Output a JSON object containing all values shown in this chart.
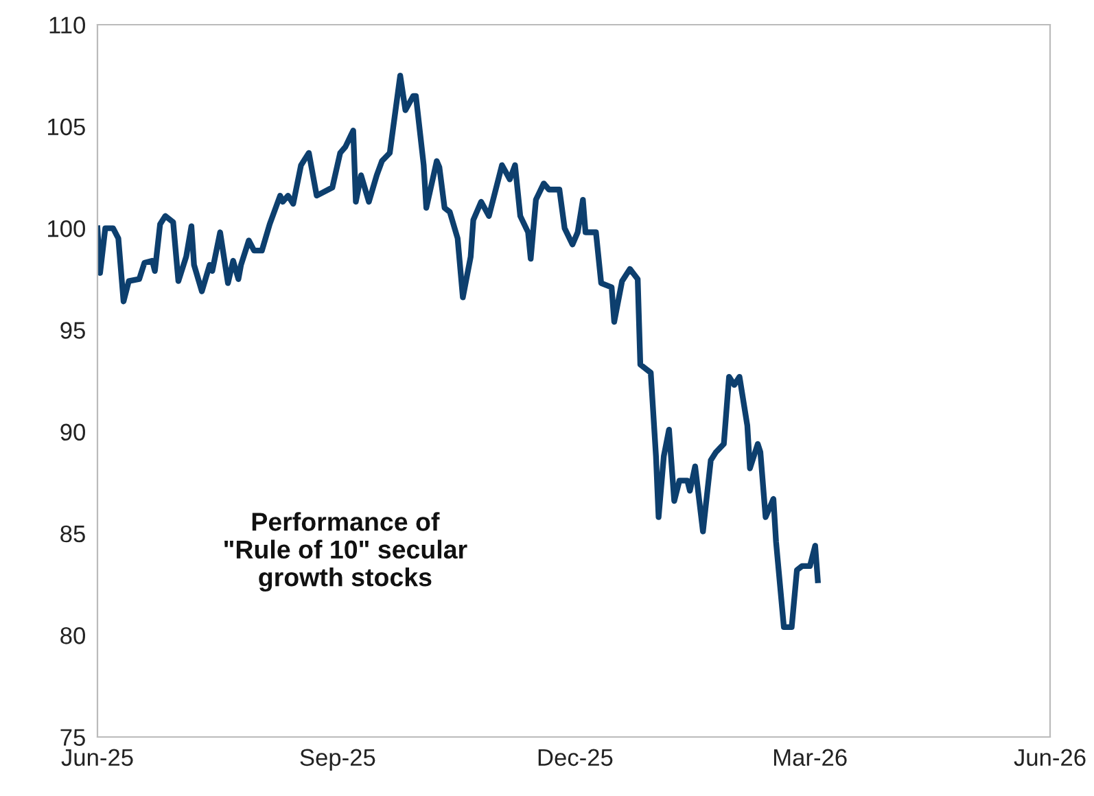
{
  "chart_data": {
    "type": "line",
    "annotations": [
      "Performance of\n\"Rule of 10\" secular\ngrowth stocks"
    ],
    "x": [
      "2025-06-01",
      "2025-06-02",
      "2025-06-04",
      "2025-06-07",
      "2025-06-09",
      "2025-06-11",
      "2025-06-13",
      "2025-06-17",
      "2025-06-19",
      "2025-06-22",
      "2025-06-23",
      "2025-06-25",
      "2025-06-27",
      "2025-06-30",
      "2025-07-02",
      "2025-07-05",
      "2025-07-07",
      "2025-07-08",
      "2025-07-11",
      "2025-07-14",
      "2025-07-15",
      "2025-07-18",
      "2025-07-21",
      "2025-07-23",
      "2025-07-25",
      "2025-07-26",
      "2025-07-29",
      "2025-07-31",
      "2025-08-03",
      "2025-08-06",
      "2025-08-10",
      "2025-08-11",
      "2025-08-13",
      "2025-08-15",
      "2025-08-18",
      "2025-08-21",
      "2025-08-24",
      "2025-08-30",
      "2025-09-02",
      "2025-09-04",
      "2025-09-07",
      "2025-09-08",
      "2025-09-10",
      "2025-09-13",
      "2025-09-16",
      "2025-09-18",
      "2025-09-21",
      "2025-09-25",
      "2025-09-27",
      "2025-09-30",
      "2025-10-01",
      "2025-10-04",
      "2025-10-05",
      "2025-10-09",
      "2025-10-10",
      "2025-10-12",
      "2025-10-14",
      "2025-10-17",
      "2025-10-19",
      "2025-10-22",
      "2025-10-23",
      "2025-10-26",
      "2025-10-29",
      "2025-11-03",
      "2025-11-06",
      "2025-11-08",
      "2025-11-10",
      "2025-11-13",
      "2025-11-14",
      "2025-11-16",
      "2025-11-19",
      "2025-11-21",
      "2025-11-25",
      "2025-11-27",
      "2025-11-30",
      "2025-12-02",
      "2025-12-04",
      "2025-12-05",
      "2025-12-09",
      "2025-12-11",
      "2025-12-15",
      "2025-12-16",
      "2025-12-19",
      "2025-12-22",
      "2025-12-25",
      "2025-12-26",
      "2025-12-30",
      "2026-01-01",
      "2026-01-02",
      "2026-01-04",
      "2026-01-06",
      "2026-01-08",
      "2026-01-10",
      "2026-01-13",
      "2026-01-14",
      "2026-01-16",
      "2026-01-19",
      "2026-01-22",
      "2026-01-24",
      "2026-01-27",
      "2026-01-29",
      "2026-01-31",
      "2026-02-02",
      "2026-02-05",
      "2026-02-06",
      "2026-02-09",
      "2026-02-10",
      "2026-02-12",
      "2026-02-15",
      "2026-02-16",
      "2026-02-19",
      "2026-02-22",
      "2026-02-24",
      "2026-02-26",
      "2026-03-01",
      "2026-03-03",
      "2026-03-04"
    ],
    "series": [
      {
        "color": "#0d3f6e",
        "values": [
          100.0,
          97.8,
          100.0,
          100.0,
          99.5,
          96.4,
          97.4,
          97.5,
          98.3,
          98.4,
          97.9,
          100.2,
          100.6,
          100.3,
          97.4,
          98.6,
          100.1,
          98.2,
          96.9,
          98.2,
          97.9,
          99.8,
          97.3,
          98.4,
          97.5,
          98.2,
          99.4,
          98.9,
          98.9,
          100.2,
          101.6,
          101.3,
          101.6,
          101.2,
          103.1,
          103.7,
          101.6,
          102.0,
          103.7,
          104.0,
          104.8,
          101.3,
          102.6,
          101.3,
          102.6,
          103.3,
          103.7,
          107.5,
          105.8,
          106.5,
          106.5,
          103.1,
          101.0,
          103.3,
          103.0,
          101.0,
          100.8,
          99.5,
          96.6,
          98.6,
          100.4,
          101.3,
          100.6,
          103.1,
          102.4,
          103.1,
          100.6,
          99.8,
          98.5,
          101.4,
          102.2,
          101.9,
          101.9,
          100.0,
          99.2,
          99.8,
          101.4,
          99.8,
          99.8,
          97.3,
          97.1,
          95.4,
          97.4,
          98.0,
          97.5,
          93.3,
          92.9,
          88.8,
          85.8,
          88.8,
          90.1,
          86.6,
          87.6,
          87.6,
          87.1,
          88.3,
          85.1,
          88.6,
          89.0,
          89.4,
          92.7,
          92.3,
          92.7,
          90.3,
          88.2,
          89.4,
          89.0,
          85.8,
          86.7,
          84.6,
          80.4,
          80.4,
          83.2,
          83.4,
          83.4,
          84.4,
          82.7
        ]
      }
    ],
    "xlim": [
      "2025-06-01",
      "2026-06-01"
    ],
    "xticks": [
      {
        "value": "2025-06-01",
        "label": "Jun-25"
      },
      {
        "value": "2025-09-01",
        "label": "Sep-25"
      },
      {
        "value": "2025-12-01",
        "label": "Dec-25"
      },
      {
        "value": "2026-03-01",
        "label": "Mar-26"
      },
      {
        "value": "2026-06-01",
        "label": "Jun-26"
      }
    ],
    "ylim": [
      75,
      110
    ],
    "yticks": [
      75,
      80,
      85,
      90,
      95,
      100,
      105,
      110
    ],
    "grid": false,
    "legend": false,
    "marker": "none",
    "line_style": "solid"
  }
}
